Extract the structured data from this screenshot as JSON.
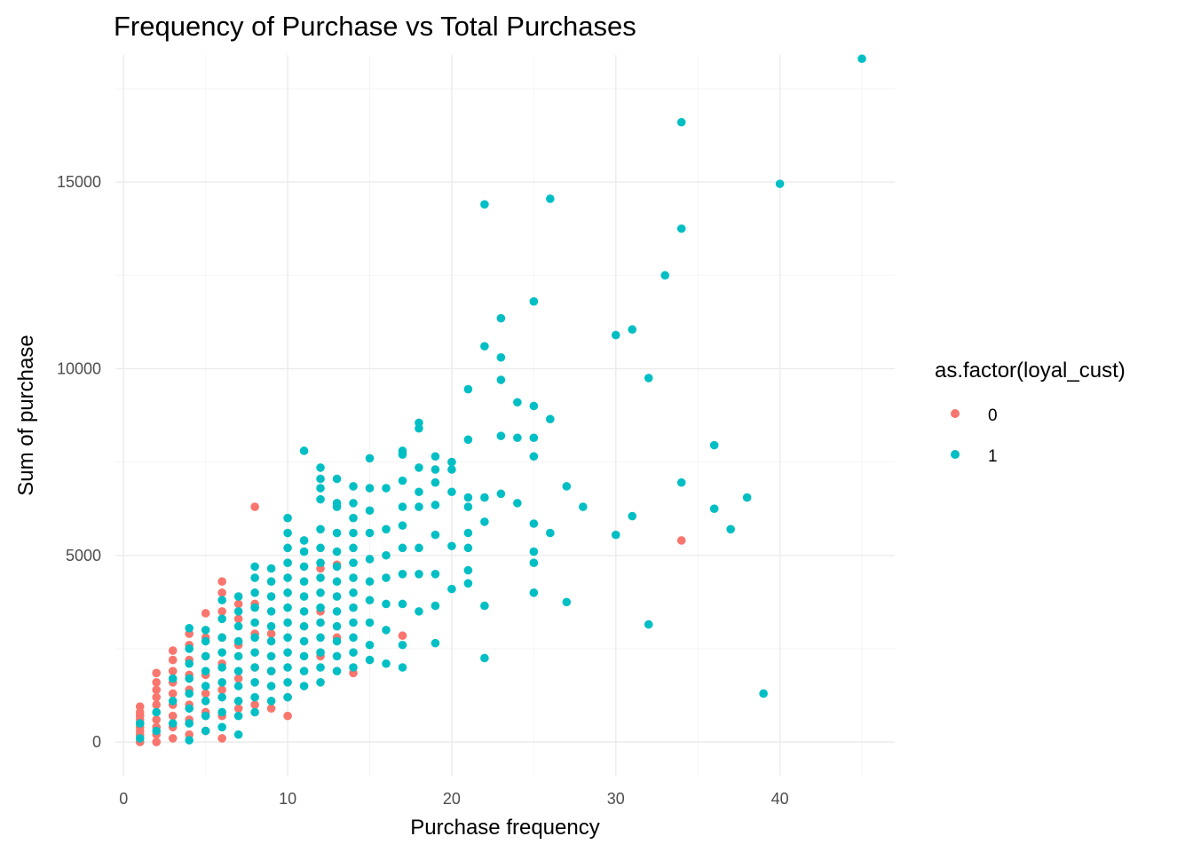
{
  "chart_data": {
    "type": "scatter",
    "title": "Frequency of Purchase vs Total Purchases",
    "xlabel": "Purchase frequency",
    "ylabel": "Sum of purchase",
    "xlim": [
      -0.5,
      47
    ],
    "ylim": [
      -900,
      18400
    ],
    "x_ticks": [
      0,
      10,
      20,
      30,
      40
    ],
    "y_ticks": [
      0,
      5000,
      10000,
      15000
    ],
    "grid": true,
    "legend": {
      "title": "as.factor(loyal_cust)",
      "position": "right",
      "entries": [
        {
          "label": "0",
          "color": "#F8766D"
        },
        {
          "label": "1",
          "color": "#00BFC4"
        }
      ]
    },
    "series": [
      {
        "label": "0",
        "color": "#F8766D",
        "points": [
          [
            1,
            0
          ],
          [
            1,
            100
          ],
          [
            1,
            200
          ],
          [
            1,
            300
          ],
          [
            1,
            400
          ],
          [
            1,
            500
          ],
          [
            1,
            600
          ],
          [
            1,
            700
          ],
          [
            1,
            800
          ],
          [
            1,
            950
          ],
          [
            2,
            0
          ],
          [
            2,
            200
          ],
          [
            2,
            400
          ],
          [
            2,
            600
          ],
          [
            2,
            800
          ],
          [
            2,
            1000
          ],
          [
            2,
            1200
          ],
          [
            2,
            1400
          ],
          [
            2,
            1600
          ],
          [
            2,
            1850
          ],
          [
            3,
            100
          ],
          [
            3,
            400
          ],
          [
            3,
            700
          ],
          [
            3,
            1000
          ],
          [
            3,
            1300
          ],
          [
            3,
            1600
          ],
          [
            3,
            1900
          ],
          [
            3,
            2200
          ],
          [
            3,
            2450
          ],
          [
            4,
            200
          ],
          [
            4,
            600
          ],
          [
            4,
            1000
          ],
          [
            4,
            1400
          ],
          [
            4,
            1800
          ],
          [
            4,
            2200
          ],
          [
            4,
            2600
          ],
          [
            4,
            2900
          ],
          [
            5,
            300
          ],
          [
            5,
            800
          ],
          [
            5,
            1300
          ],
          [
            5,
            1800
          ],
          [
            5,
            2300
          ],
          [
            5,
            2800
          ],
          [
            5,
            3450
          ],
          [
            6,
            100
          ],
          [
            6,
            700
          ],
          [
            6,
            1400
          ],
          [
            6,
            2100
          ],
          [
            6,
            2800
          ],
          [
            6,
            3500
          ],
          [
            6,
            4000
          ],
          [
            6,
            4300
          ],
          [
            7,
            900
          ],
          [
            7,
            1700
          ],
          [
            7,
            2600
          ],
          [
            7,
            3300
          ],
          [
            7,
            3700
          ],
          [
            8,
            1000
          ],
          [
            8,
            2000
          ],
          [
            8,
            2900
          ],
          [
            8,
            3700
          ],
          [
            8,
            6300
          ],
          [
            9,
            900
          ],
          [
            9,
            1900
          ],
          [
            9,
            2900
          ],
          [
            10,
            700
          ],
          [
            10,
            1200
          ],
          [
            12,
            2300
          ],
          [
            12,
            3500
          ],
          [
            12,
            4650
          ],
          [
            13,
            2800
          ],
          [
            13,
            4750
          ],
          [
            14,
            1850
          ],
          [
            17,
            2850
          ],
          [
            34,
            5400
          ]
        ]
      },
      {
        "label": "1",
        "color": "#00BFC4",
        "points": [
          [
            1,
            100
          ],
          [
            1,
            500
          ],
          [
            2,
            300
          ],
          [
            2,
            800
          ],
          [
            3,
            500
          ],
          [
            3,
            1100
          ],
          [
            3,
            1700
          ],
          [
            4,
            50
          ],
          [
            4,
            500
          ],
          [
            4,
            900
          ],
          [
            4,
            1300
          ],
          [
            4,
            1700
          ],
          [
            4,
            2100
          ],
          [
            4,
            2500
          ],
          [
            4,
            3050
          ],
          [
            5,
            300
          ],
          [
            5,
            700
          ],
          [
            5,
            1100
          ],
          [
            5,
            1500
          ],
          [
            5,
            1900
          ],
          [
            5,
            2300
          ],
          [
            5,
            2700
          ],
          [
            5,
            3000
          ],
          [
            6,
            400
          ],
          [
            6,
            800
          ],
          [
            6,
            1200
          ],
          [
            6,
            1600
          ],
          [
            6,
            2000
          ],
          [
            6,
            2400
          ],
          [
            6,
            2800
          ],
          [
            6,
            3300
          ],
          [
            6,
            3800
          ],
          [
            7,
            200
          ],
          [
            7,
            700
          ],
          [
            7,
            1100
          ],
          [
            7,
            1500
          ],
          [
            7,
            1900
          ],
          [
            7,
            2300
          ],
          [
            7,
            2700
          ],
          [
            7,
            3100
          ],
          [
            7,
            3500
          ],
          [
            7,
            3900
          ],
          [
            8,
            800
          ],
          [
            8,
            1200
          ],
          [
            8,
            1600
          ],
          [
            8,
            2000
          ],
          [
            8,
            2400
          ],
          [
            8,
            2800
          ],
          [
            8,
            3200
          ],
          [
            8,
            3600
          ],
          [
            8,
            4000
          ],
          [
            8,
            4400
          ],
          [
            8,
            4700
          ],
          [
            9,
            1100
          ],
          [
            9,
            1500
          ],
          [
            9,
            1900
          ],
          [
            9,
            2300
          ],
          [
            9,
            2700
          ],
          [
            9,
            3100
          ],
          [
            9,
            3500
          ],
          [
            9,
            3900
          ],
          [
            9,
            4300
          ],
          [
            9,
            4650
          ],
          [
            10,
            1200
          ],
          [
            10,
            1600
          ],
          [
            10,
            2000
          ],
          [
            10,
            2400
          ],
          [
            10,
            2800
          ],
          [
            10,
            3200
          ],
          [
            10,
            3600
          ],
          [
            10,
            4000
          ],
          [
            10,
            4400
          ],
          [
            10,
            4800
          ],
          [
            10,
            5200
          ],
          [
            10,
            5600
          ],
          [
            10,
            6000
          ],
          [
            11,
            1500
          ],
          [
            11,
            1900
          ],
          [
            11,
            2300
          ],
          [
            11,
            2700
          ],
          [
            11,
            3100
          ],
          [
            11,
            3500
          ],
          [
            11,
            3900
          ],
          [
            11,
            4300
          ],
          [
            11,
            4700
          ],
          [
            11,
            5100
          ],
          [
            11,
            5400
          ],
          [
            11,
            7800
          ],
          [
            12,
            1600
          ],
          [
            12,
            2000
          ],
          [
            12,
            2400
          ],
          [
            12,
            2800
          ],
          [
            12,
            3200
          ],
          [
            12,
            3600
          ],
          [
            12,
            4000
          ],
          [
            12,
            4400
          ],
          [
            12,
            4800
          ],
          [
            12,
            5200
          ],
          [
            12,
            5700
          ],
          [
            12,
            6500
          ],
          [
            12,
            6800
          ],
          [
            12,
            7050
          ],
          [
            12,
            7350
          ],
          [
            13,
            1900
          ],
          [
            13,
            2300
          ],
          [
            13,
            2700
          ],
          [
            13,
            3100
          ],
          [
            13,
            3500
          ],
          [
            13,
            3900
          ],
          [
            13,
            4300
          ],
          [
            13,
            4700
          ],
          [
            13,
            5100
          ],
          [
            13,
            5600
          ],
          [
            13,
            6300
          ],
          [
            13,
            6400
          ],
          [
            13,
            7050
          ],
          [
            14,
            2000
          ],
          [
            14,
            2400
          ],
          [
            14,
            2800
          ],
          [
            14,
            3200
          ],
          [
            14,
            3600
          ],
          [
            14,
            4000
          ],
          [
            14,
            4400
          ],
          [
            14,
            4800
          ],
          [
            14,
            5200
          ],
          [
            14,
            5600
          ],
          [
            14,
            6000
          ],
          [
            14,
            6400
          ],
          [
            14,
            6850
          ],
          [
            15,
            2200
          ],
          [
            15,
            2600
          ],
          [
            15,
            3200
          ],
          [
            15,
            3800
          ],
          [
            15,
            4300
          ],
          [
            15,
            4900
          ],
          [
            15,
            5600
          ],
          [
            15,
            6200
          ],
          [
            15,
            6800
          ],
          [
            15,
            7600
          ],
          [
            16,
            2100
          ],
          [
            16,
            3000
          ],
          [
            16,
            3700
          ],
          [
            16,
            4400
          ],
          [
            16,
            5000
          ],
          [
            16,
            5700
          ],
          [
            16,
            6800
          ],
          [
            17,
            2000
          ],
          [
            17,
            2600
          ],
          [
            17,
            3700
          ],
          [
            17,
            4500
          ],
          [
            17,
            5200
          ],
          [
            17,
            5800
          ],
          [
            17,
            6300
          ],
          [
            17,
            7000
          ],
          [
            17,
            7700
          ],
          [
            17,
            7800
          ],
          [
            18,
            3500
          ],
          [
            18,
            4500
          ],
          [
            18,
            5200
          ],
          [
            18,
            6300
          ],
          [
            18,
            6700
          ],
          [
            18,
            7350
          ],
          [
            18,
            8400
          ],
          [
            18,
            8550
          ],
          [
            19,
            2650
          ],
          [
            19,
            3650
          ],
          [
            19,
            4500
          ],
          [
            19,
            5550
          ],
          [
            19,
            6350
          ],
          [
            19,
            6950
          ],
          [
            19,
            7300
          ],
          [
            19,
            7650
          ],
          [
            20,
            4100
          ],
          [
            20,
            5250
          ],
          [
            20,
            6700
          ],
          [
            20,
            7300
          ],
          [
            20,
            7500
          ],
          [
            21,
            4250
          ],
          [
            21,
            4600
          ],
          [
            21,
            5200
          ],
          [
            21,
            5600
          ],
          [
            21,
            6300
          ],
          [
            21,
            6550
          ],
          [
            21,
            8100
          ],
          [
            21,
            9450
          ],
          [
            22,
            2250
          ],
          [
            22,
            3650
          ],
          [
            22,
            5900
          ],
          [
            22,
            6550
          ],
          [
            22,
            10600
          ],
          [
            22,
            14400
          ],
          [
            23,
            6650
          ],
          [
            23,
            8200
          ],
          [
            23,
            9700
          ],
          [
            23,
            10300
          ],
          [
            23,
            11350
          ],
          [
            24,
            6400
          ],
          [
            24,
            8150
          ],
          [
            24,
            9100
          ],
          [
            25,
            4000
          ],
          [
            25,
            4800
          ],
          [
            25,
            5100
          ],
          [
            25,
            5850
          ],
          [
            25,
            7650
          ],
          [
            25,
            8150
          ],
          [
            25,
            9000
          ],
          [
            25,
            11800
          ],
          [
            26,
            5600
          ],
          [
            26,
            8650
          ],
          [
            26,
            14550
          ],
          [
            27,
            3750
          ],
          [
            27,
            6850
          ],
          [
            28,
            6300
          ],
          [
            30,
            5550
          ],
          [
            30,
            10900
          ],
          [
            31,
            6050
          ],
          [
            31,
            11050
          ],
          [
            32,
            3150
          ],
          [
            32,
            9750
          ],
          [
            33,
            12500
          ],
          [
            34,
            6950
          ],
          [
            34,
            13750
          ],
          [
            34,
            16600
          ],
          [
            36,
            6250
          ],
          [
            36,
            7950
          ],
          [
            37,
            5700
          ],
          [
            38,
            6550
          ],
          [
            39,
            1300
          ],
          [
            40,
            14950
          ],
          [
            45,
            18300
          ]
        ]
      }
    ]
  }
}
